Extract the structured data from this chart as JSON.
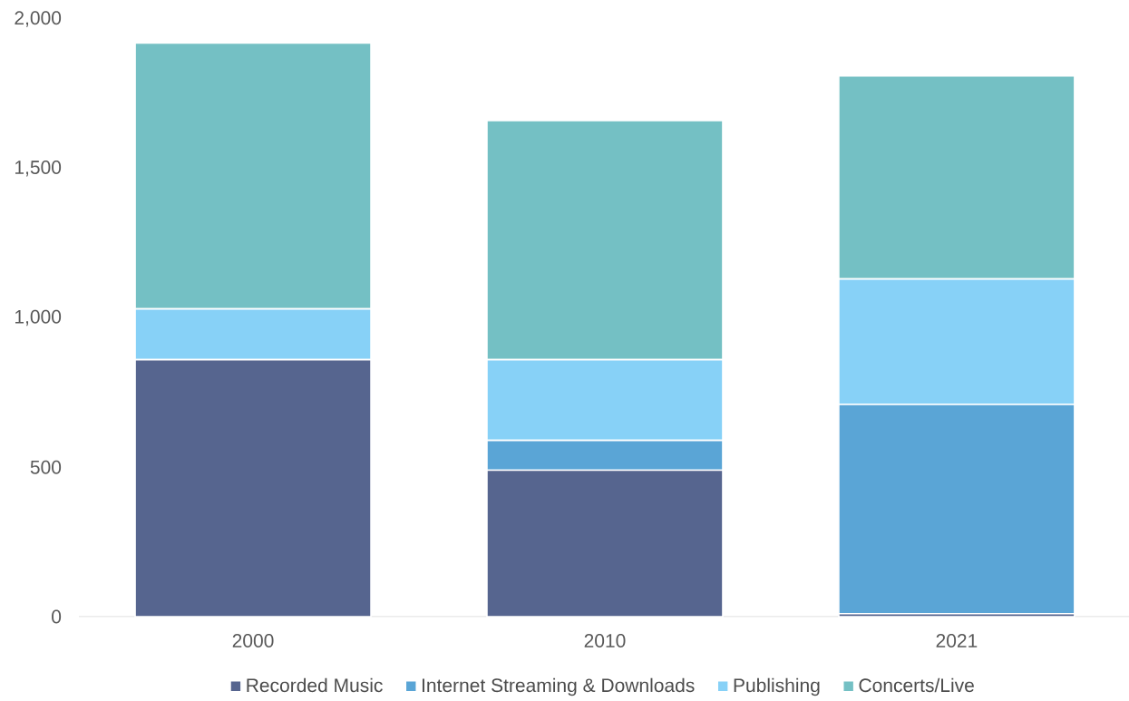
{
  "chart_data": {
    "type": "bar",
    "stacked": true,
    "categories": [
      "2000",
      "2010",
      "2021"
    ],
    "series": [
      {
        "name": "Recorded Music",
        "color": "#56658f",
        "values": [
          860,
          490,
          10
        ]
      },
      {
        "name": "Internet Streaming & Downloads",
        "color": "#5aa5d6",
        "values": [
          0,
          100,
          700
        ]
      },
      {
        "name": "Publishing",
        "color": "#87d1f7",
        "values": [
          170,
          270,
          420
        ]
      },
      {
        "name": "Concerts/Live",
        "color": "#74c0c4",
        "values": [
          890,
          800,
          680
        ]
      }
    ],
    "ylim": [
      0,
      2000
    ],
    "yticks": [
      0,
      {
        "value": 500,
        "label": "500"
      },
      {
        "value": 1000,
        "label": "1,000"
      },
      {
        "value": 1500,
        "label": "1,500"
      },
      {
        "value": 2000,
        "label": "2,000"
      }
    ],
    "legend": "bottom"
  }
}
